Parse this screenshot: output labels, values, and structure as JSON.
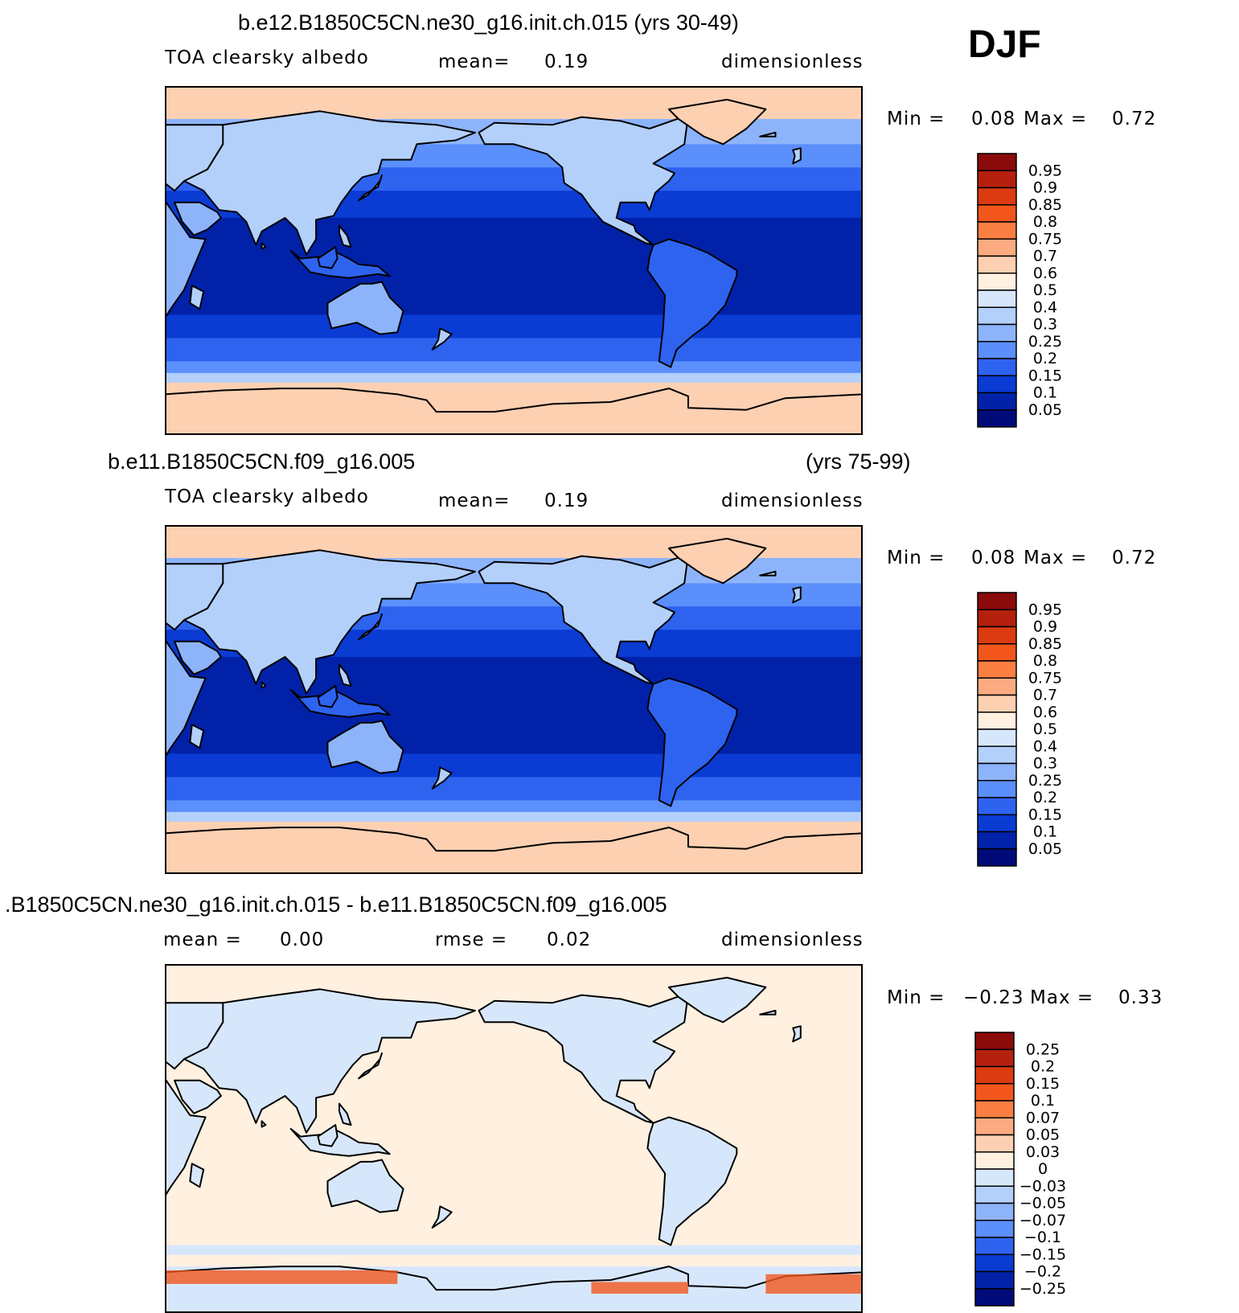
{
  "season": "DJF",
  "panels": [
    {
      "title_left": "b.e12.B1850C5CN.ne30_g16.init.ch.015 (yrs 30-49)",
      "title_right": "",
      "variable": "TOA clearsky albedo",
      "stat1_label": "mean=",
      "stat1_value": "0.19",
      "stat2_label": "",
      "stat2_value": "",
      "units": "dimensionless",
      "min_label": "Min =",
      "min_value": "0.08",
      "max_label": "Max =",
      "max_value": "0.72"
    },
    {
      "title_left": "b.e11.B1850C5CN.f09_g16.005",
      "title_right": "(yrs 75-99)",
      "variable": "TOA clearsky albedo",
      "stat1_label": "mean=",
      "stat1_value": "0.19",
      "stat2_label": "",
      "stat2_value": "",
      "units": "dimensionless",
      "min_label": "Min =",
      "min_value": "0.08",
      "max_label": "Max =",
      "max_value": "0.72"
    },
    {
      "title_left": ".B1850C5CN.ne30_g16.init.ch.015 - b.e11.B1850C5CN.f09_g16.005",
      "title_right": "",
      "variable": "",
      "stat1_label": "mean =",
      "stat1_value": "0.00",
      "stat2_label": "rmse =",
      "stat2_value": "0.02",
      "units": "dimensionless",
      "min_label": "Min =",
      "min_value": "−0.23",
      "max_label": "Max =",
      "max_value": "0.33"
    }
  ],
  "chart_data": [
    {
      "type": "heatmap",
      "title": "b.e12.B1850C5CN.ne30_g16.init.ch.015 (yrs 30-49)",
      "field": "TOA clearsky albedo",
      "units": "dimensionless",
      "mean": 0.19,
      "min": 0.08,
      "max": 0.72,
      "colorbar_levels": [
        "0.95",
        "0.9",
        "0.85",
        "0.8",
        "0.75",
        "0.7",
        "0.6",
        "0.5",
        "0.4",
        "0.3",
        "0.25",
        "0.2",
        "0.15",
        "0.1",
        "0.05"
      ],
      "colorbar_colors": [
        "#8b0a0a",
        "#b5200e",
        "#dc3a10",
        "#f2561d",
        "#fb7f43",
        "#fcab80",
        "#fdd0b2",
        "#fff0e0",
        "#d7e7fb",
        "#b3d0fb",
        "#8db4fb",
        "#5b8ffc",
        "#2e63f0",
        "#0a3bd3",
        "#0122a8",
        "#000b7a"
      ]
    },
    {
      "type": "heatmap",
      "title": "b.e11.B1850C5CN.f09_g16.005 (yrs 75-99)",
      "field": "TOA clearsky albedo",
      "units": "dimensionless",
      "mean": 0.19,
      "min": 0.08,
      "max": 0.72,
      "colorbar_levels": [
        "0.95",
        "0.9",
        "0.85",
        "0.8",
        "0.75",
        "0.7",
        "0.6",
        "0.5",
        "0.4",
        "0.3",
        "0.25",
        "0.2",
        "0.15",
        "0.1",
        "0.05"
      ],
      "colorbar_colors": [
        "#8b0a0a",
        "#b5200e",
        "#dc3a10",
        "#f2561d",
        "#fb7f43",
        "#fcab80",
        "#fdd0b2",
        "#fff0e0",
        "#d7e7fb",
        "#b3d0fb",
        "#8db4fb",
        "#5b8ffc",
        "#2e63f0",
        "#0a3bd3",
        "#0122a8",
        "#000b7a"
      ]
    },
    {
      "type": "heatmap",
      "title": ".B1850C5CN.ne30_g16.init.ch.015 - b.e11.B1850C5CN.f09_g16.005",
      "units": "dimensionless",
      "mean": 0.0,
      "rmse": 0.02,
      "min": -0.23,
      "max": 0.33,
      "colorbar_levels": [
        "0.25",
        "0.2",
        "0.15",
        "0.1",
        "0.07",
        "0.05",
        "0.03",
        "0",
        "−0.03",
        "−0.05",
        "−0.07",
        "−0.1",
        "−0.15",
        "−0.2",
        "−0.25"
      ],
      "colorbar_colors": [
        "#8b0a0a",
        "#b5200e",
        "#dc3a10",
        "#f2561d",
        "#fb7f43",
        "#fcab80",
        "#fdd0b2",
        "#fff0e0",
        "#d7e7fb",
        "#b3d0fb",
        "#8db4fb",
        "#5b8ffc",
        "#2e63f0",
        "#0a3bd3",
        "#0122a8",
        "#000b7a"
      ]
    }
  ]
}
